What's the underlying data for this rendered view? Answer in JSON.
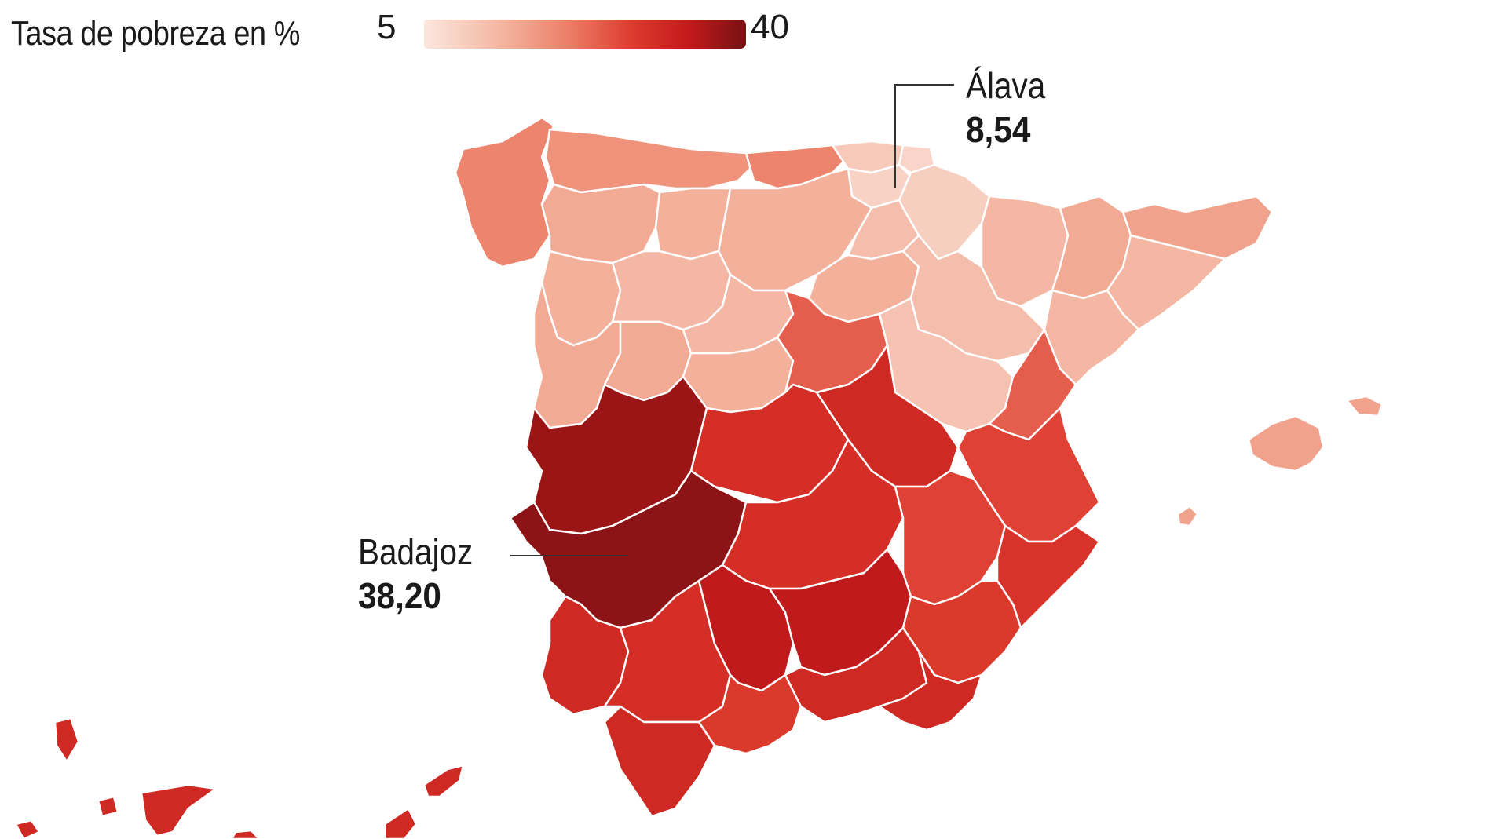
{
  "legend": {
    "title": "Tasa de pobreza en %",
    "min_label": "5",
    "max_label": "40",
    "color_min": "#fbe4da",
    "color_max": "#7a1214"
  },
  "callouts": [
    {
      "id": "alava",
      "name": "Álava",
      "value_label": "8,54",
      "value": 8.54
    },
    {
      "id": "badajoz",
      "name": "Badajoz",
      "value_label": "38,20",
      "value": 38.2
    }
  ],
  "region_levels": {
    "galicia": 20,
    "asturias": 18,
    "cantabria": 20,
    "bizkaia": 10,
    "gipuzkoa": 8,
    "alava": 8.54,
    "navarra": 9,
    "leon": 15,
    "palencia": 14,
    "burgos": 14,
    "la_rioja": 12,
    "huesca": 13,
    "lleida": 15,
    "girona": 16,
    "barcelona": 13,
    "zamora": 14,
    "valladolid": 13,
    "soria": 14,
    "zaragoza": 12,
    "tarragona": 13,
    "salamanca": 15,
    "avila": 15,
    "segovia": 13,
    "madrid": 14,
    "guadalajara": 24,
    "teruel": 11,
    "castellon": 24,
    "caceres": 37,
    "toledo": 30,
    "cuenca": 31,
    "valencia": 27,
    "badajoz": 38.2,
    "ciudad_real": 30,
    "albacete": 27,
    "alicante": 29,
    "huelva": 31,
    "sevilla": 30,
    "cordoba": 34,
    "jaen": 34,
    "murcia": 28,
    "cadiz": 31,
    "malaga": 28,
    "granada": 31,
    "almeria": 31,
    "baleares": 16,
    "canarias": 31
  }
}
